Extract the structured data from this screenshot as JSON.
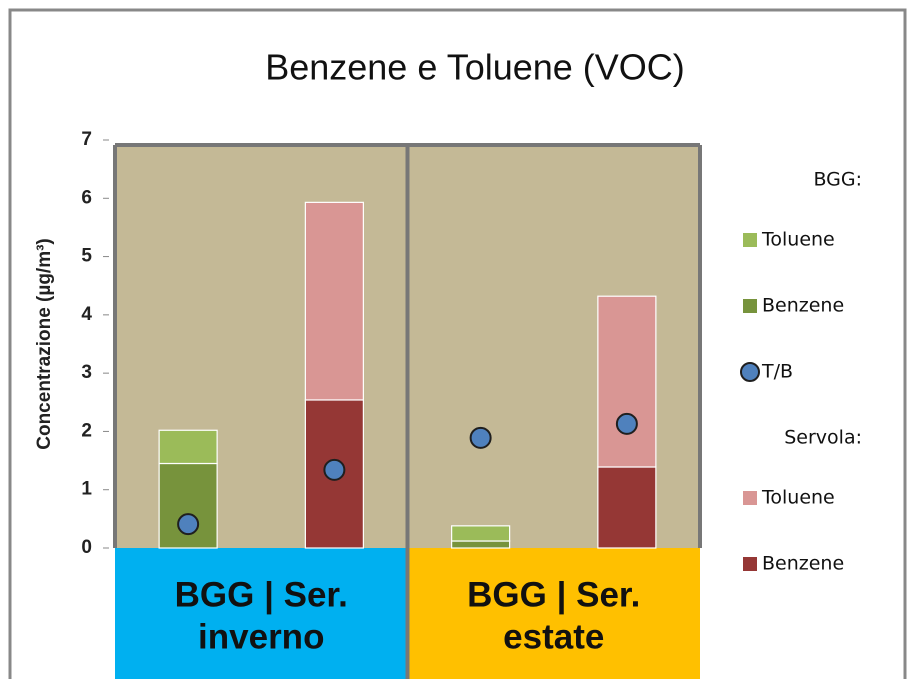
{
  "chart_data": {
    "type": "bar",
    "title": "Benzene e Toluene (VOC)",
    "y_label": "Concentrazione (µg/m³)",
    "ylim": [
      0,
      7
    ],
    "yticks": [
      0,
      1,
      2,
      3,
      4,
      5,
      6,
      7
    ],
    "x_groups": [
      {
        "lines": [
          "BGG | Ser.",
          "inverno"
        ],
        "color": "#00b0f0"
      },
      {
        "lines": [
          "BGG | Ser.",
          "estate"
        ],
        "color": "#ffc000"
      }
    ],
    "stations": [
      {
        "name": "BGG:",
        "series": [
          {
            "name": "Toluene",
            "color": "#9bbb59",
            "values": [
              0.57,
              null,
              0.26,
              null
            ]
          },
          {
            "name": "Benzene",
            "color": "#77933c",
            "values": [
              1.45,
              null,
              0.12,
              null
            ]
          },
          {
            "name": "T/B",
            "type": "scatter",
            "color": "#4f81bd",
            "values": [
              0.41,
              1.34,
              1.89,
              2.13
            ]
          }
        ]
      },
      {
        "name": "Servola:",
        "series": [
          {
            "name": "Toluene",
            "color": "#d99694",
            "values": [
              null,
              3.39,
              null,
              2.93
            ]
          },
          {
            "name": "Benzene",
            "color": "#953735",
            "values": [
              null,
              2.54,
              null,
              1.39
            ]
          }
        ]
      }
    ]
  }
}
